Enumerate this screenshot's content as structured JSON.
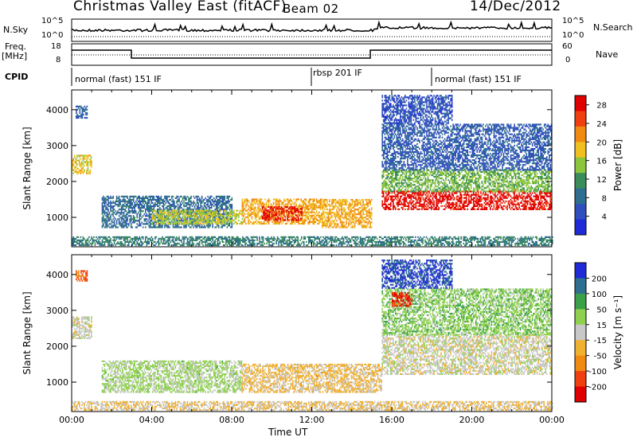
{
  "title": "Christmas Valley East (fitACF)",
  "beam": "Beam 02",
  "date": "14/Dec/2012",
  "noise_panel": {
    "left_label": "N.Sky",
    "right_label": "N.Search",
    "left_ticks": [
      "10^5",
      "10^0"
    ],
    "right_ticks": [
      "10^5",
      "10^0"
    ]
  },
  "freq_panel": {
    "left_label_1": "Freq.",
    "left_label_2": "[MHz]",
    "left_ticks": [
      "18",
      "8"
    ],
    "right_label": "Nave",
    "right_ticks": [
      "60",
      "0"
    ]
  },
  "cpid": {
    "label": "CPID",
    "segments": [
      {
        "start_hour": 0,
        "end_hour": 12,
        "label": "normal (fast) 151 IF"
      },
      {
        "start_hour": 12,
        "end_hour": 18,
        "label": "rbsp 201 IF"
      },
      {
        "start_hour": 18,
        "end_hour": 24,
        "label": "normal (fast) 151 IF"
      }
    ]
  },
  "chart_data": [
    {
      "type": "heatmap",
      "name": "power",
      "ylabel": "Slant Range [km]",
      "xlabel": "Time UT",
      "xlim": [
        0,
        24
      ],
      "ylim": [
        180,
        4550
      ],
      "yticks": [
        1000,
        2000,
        3000,
        4000
      ],
      "xticks": [
        "00:00",
        "04:00",
        "08:00",
        "12:00",
        "16:00",
        "20:00",
        "00:00"
      ],
      "colorbar": {
        "label": "Power [dB]",
        "ticks": [
          4,
          8,
          12,
          16,
          20,
          24,
          28
        ],
        "range": [
          0,
          30
        ]
      },
      "features": [
        {
          "t0": 0.0,
          "t1": 1.0,
          "r0": 2200,
          "r1": 2700,
          "level": 18
        },
        {
          "t0": 0.2,
          "t1": 0.8,
          "r0": 3750,
          "r1": 4100,
          "level": 6
        },
        {
          "t0": 1.5,
          "t1": 8.0,
          "r0": 700,
          "r1": 1600,
          "level": 8
        },
        {
          "t0": 4.0,
          "t1": 8.5,
          "r0": 800,
          "r1": 1200,
          "level": 16
        },
        {
          "t0": 8.5,
          "t1": 12.5,
          "r0": 800,
          "r1": 1500,
          "level": 20
        },
        {
          "t0": 9.5,
          "t1": 11.5,
          "r0": 900,
          "r1": 1300,
          "level": 27
        },
        {
          "t0": 12.5,
          "t1": 15.0,
          "r0": 700,
          "r1": 1500,
          "level": 20
        },
        {
          "t0": 15.5,
          "t1": 24.0,
          "r0": 1200,
          "r1": 1700,
          "level": 28
        },
        {
          "t0": 15.5,
          "t1": 24.0,
          "r0": 1700,
          "r1": 2300,
          "level": 14
        },
        {
          "t0": 15.5,
          "t1": 24.0,
          "r0": 2300,
          "r1": 3600,
          "level": 6
        },
        {
          "t0": 15.5,
          "t1": 19.0,
          "r0": 3600,
          "r1": 4400,
          "level": 5
        },
        {
          "t0": 0.0,
          "t1": 24.0,
          "r0": 200,
          "r1": 450,
          "level": 10
        }
      ]
    },
    {
      "type": "heatmap",
      "name": "velocity",
      "ylabel": "Slant Range [km]",
      "xlabel": "Time UT",
      "xlim": [
        0,
        24
      ],
      "ylim": [
        180,
        4550
      ],
      "yticks": [
        1000,
        2000,
        3000,
        4000
      ],
      "xticks": [
        "00:00",
        "04:00",
        "08:00",
        "12:00",
        "16:00",
        "20:00",
        "00:00"
      ],
      "colorbar": {
        "label": "Velocity [m s⁻¹]",
        "ticks": [
          "200",
          "100",
          "50",
          "15",
          "-15",
          "-50",
          "-100",
          "-200"
        ],
        "range": [
          -250,
          250
        ]
      },
      "features": [
        {
          "t0": 0.0,
          "t1": 1.0,
          "r0": 2200,
          "r1": 2800,
          "level": 0
        },
        {
          "t0": 0.2,
          "t1": 0.8,
          "r0": 3800,
          "r1": 4100,
          "level": -150
        },
        {
          "t0": 1.5,
          "t1": 8.5,
          "r0": 700,
          "r1": 1600,
          "level": 40
        },
        {
          "t0": 8.5,
          "t1": 15.5,
          "r0": 700,
          "r1": 1500,
          "level": -40
        },
        {
          "t0": 15.5,
          "t1": 24.0,
          "r0": 1200,
          "r1": 2300,
          "level": 0
        },
        {
          "t0": 15.5,
          "t1": 24.0,
          "r0": 2300,
          "r1": 3600,
          "level": 60
        },
        {
          "t0": 16.0,
          "t1": 17.0,
          "r0": 3100,
          "r1": 3500,
          "level": -180
        },
        {
          "t0": 15.5,
          "t1": 19.0,
          "r0": 3600,
          "r1": 4400,
          "level": 200
        },
        {
          "t0": 0.0,
          "t1": 24.0,
          "r0": 200,
          "r1": 450,
          "level": -30
        }
      ]
    }
  ],
  "colors": {
    "power_scale": [
      "#1f2bd6",
      "#2f4fbf",
      "#2e6e8e",
      "#3a8c5a",
      "#8cc63c",
      "#f0c020",
      "#f08a10",
      "#f04010",
      "#e00000"
    ],
    "velocity_scale": [
      "#e00000",
      "#f04010",
      "#f08a10",
      "#f0b030",
      "#c8c8c8",
      "#8fd14f",
      "#3aa04a",
      "#2e6e8e",
      "#1f2bd6"
    ]
  }
}
